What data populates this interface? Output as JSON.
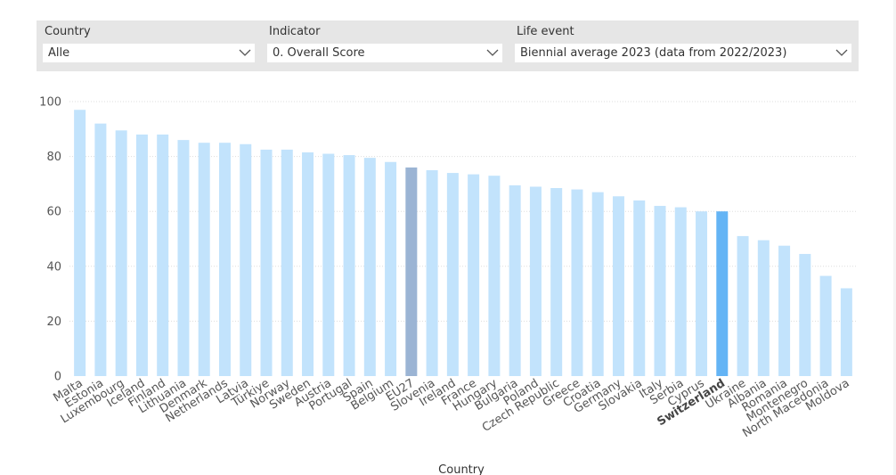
{
  "filters": {
    "country": {
      "label": "Country",
      "value": "Alle"
    },
    "indicator": {
      "label": "Indicator",
      "value": "0. Overall Score"
    },
    "life_event": {
      "label": "Life event",
      "value": "Biennial average 2023 (data from 2022/2023)"
    }
  },
  "icons": {
    "dropdown": "chevron-down-icon"
  },
  "colors": {
    "bar_default": "#c2e3fc",
    "bar_eu27": "#9bb4d4",
    "bar_highlight": "#64b4f5",
    "gridline": "#dddddd"
  },
  "chart_data": {
    "type": "bar",
    "xlabel": "Country",
    "ylabel": "",
    "ylim": [
      0,
      100
    ],
    "yticks": [
      0,
      20,
      40,
      60,
      80,
      100
    ],
    "grid": true,
    "highlighted_categories": [
      "EU27",
      "Switzerland"
    ],
    "bold_categories": [
      "Switzerland"
    ],
    "categories": [
      "Malta",
      "Estonia",
      "Luxembourg",
      "Iceland",
      "Finland",
      "Lithuania",
      "Denmark",
      "Netherlands",
      "Latvia",
      "Türkiye",
      "Norway",
      "Sweden",
      "Austria",
      "Portugal",
      "Spain",
      "Belgium",
      "EU27",
      "Slovenia",
      "Ireland",
      "France",
      "Hungary",
      "Bulgaria",
      "Poland",
      "Czech Republic",
      "Greece",
      "Croatia",
      "Germany",
      "Slovakia",
      "Italy",
      "Serbia",
      "Cyprus",
      "Switzerland",
      "Ukraine",
      "Albania",
      "Romania",
      "Montenegro",
      "North Macedonia",
      "Moldova"
    ],
    "values": [
      97,
      92,
      89.5,
      88,
      88,
      86,
      85,
      85,
      84.5,
      82.5,
      82.5,
      81.5,
      81,
      80.5,
      79.5,
      78,
      76,
      75,
      74,
      73.5,
      73,
      69.5,
      69,
      68.5,
      68,
      67,
      65.5,
      64,
      62,
      61.5,
      60,
      60,
      51,
      49.5,
      47.5,
      44.5,
      36.5,
      32
    ]
  }
}
